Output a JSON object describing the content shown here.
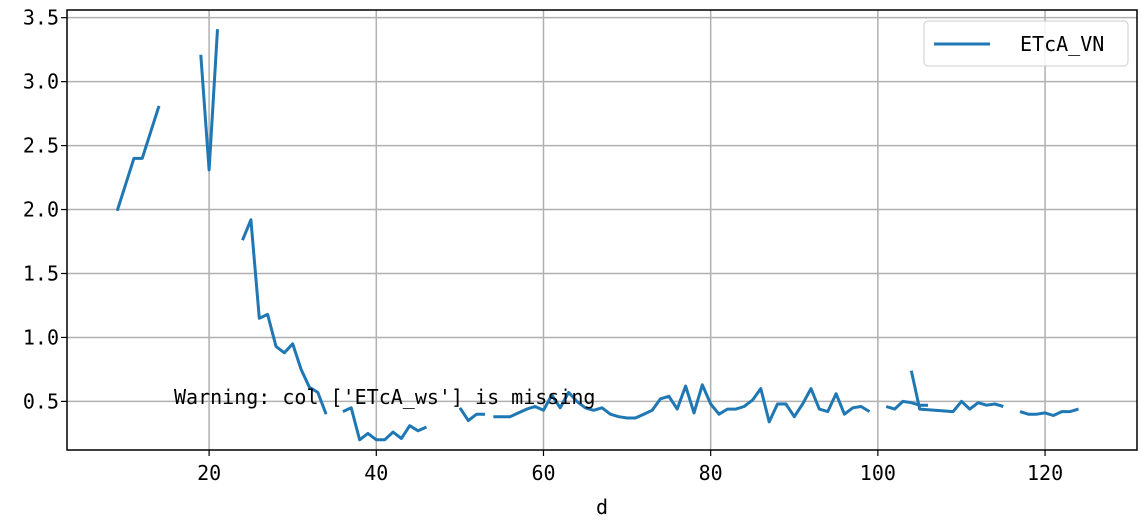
{
  "chart_data": {
    "type": "line",
    "title": "",
    "xlabel": "d",
    "ylabel": "",
    "xlim": [
      3,
      131
    ],
    "ylim": [
      0.12,
      3.56
    ],
    "x_ticks": [
      20,
      40,
      60,
      80,
      100,
      120
    ],
    "y_ticks": [
      0.5,
      1.0,
      1.5,
      2.0,
      2.5,
      3.0,
      3.5
    ],
    "x_tick_labels": [
      "20",
      "40",
      "60",
      "80",
      "100",
      "120"
    ],
    "y_tick_labels": [
      "0.5",
      "1.0",
      "1.5",
      "2.0",
      "2.5",
      "3.0",
      "3.5"
    ],
    "grid": true,
    "legend_position": "top-right",
    "annotation": "Warning: col ['ETcA_ws'] is missing",
    "series": [
      {
        "name": "ETcA_VN",
        "color": "#1f77b4",
        "segments": [
          [
            [
              9,
              1.99
            ],
            [
              11,
              2.4
            ],
            [
              12,
              2.4
            ],
            [
              14,
              2.81
            ]
          ],
          [
            [
              19,
              3.21
            ],
            [
              20,
              2.31
            ],
            [
              21,
              3.41
            ]
          ],
          [
            [
              24,
              1.76
            ],
            [
              25,
              1.92
            ],
            [
              26,
              1.15
            ],
            [
              27,
              1.18
            ],
            [
              28,
              0.93
            ],
            [
              29,
              0.88
            ],
            [
              30,
              0.95
            ],
            [
              31,
              0.75
            ],
            [
              32,
              0.61
            ],
            [
              33,
              0.57
            ],
            [
              34,
              0.4
            ]
          ],
          [
            [
              36,
              0.42
            ],
            [
              37,
              0.45
            ],
            [
              38,
              0.2
            ],
            [
              39,
              0.25
            ],
            [
              40,
              0.2
            ],
            [
              41,
              0.2
            ],
            [
              42,
              0.26
            ],
            [
              43,
              0.21
            ],
            [
              44,
              0.31
            ],
            [
              45,
              0.27
            ],
            [
              46,
              0.3
            ]
          ],
          [
            [
              50,
              0.45
            ],
            [
              51,
              0.35
            ],
            [
              52,
              0.4
            ],
            [
              53,
              0.4
            ]
          ],
          [
            [
              54,
              0.38
            ],
            [
              56,
              0.38
            ],
            [
              57,
              0.41
            ],
            [
              58,
              0.44
            ],
            [
              59,
              0.46
            ],
            [
              60,
              0.43
            ],
            [
              61,
              0.55
            ],
            [
              62,
              0.45
            ],
            [
              63,
              0.57
            ],
            [
              64,
              0.5
            ],
            [
              65,
              0.45
            ],
            [
              66,
              0.43
            ],
            [
              67,
              0.45
            ],
            [
              68,
              0.4
            ],
            [
              69,
              0.38
            ],
            [
              70,
              0.37
            ],
            [
              71,
              0.37
            ],
            [
              72,
              0.4
            ],
            [
              73,
              0.43
            ],
            [
              74,
              0.52
            ],
            [
              75,
              0.54
            ],
            [
              76,
              0.44
            ],
            [
              77,
              0.62
            ],
            [
              78,
              0.41
            ],
            [
              79,
              0.63
            ],
            [
              80,
              0.48
            ],
            [
              81,
              0.4
            ],
            [
              82,
              0.44
            ],
            [
              83,
              0.44
            ],
            [
              84,
              0.46
            ],
            [
              85,
              0.51
            ],
            [
              86,
              0.6
            ],
            [
              87,
              0.34
            ],
            [
              88,
              0.48
            ],
            [
              89,
              0.48
            ],
            [
              90,
              0.38
            ],
            [
              91,
              0.48
            ],
            [
              92,
              0.6
            ],
            [
              93,
              0.44
            ],
            [
              94,
              0.42
            ],
            [
              95,
              0.56
            ],
            [
              96,
              0.4
            ],
            [
              97,
              0.45
            ],
            [
              98,
              0.46
            ],
            [
              99,
              0.42
            ]
          ],
          [
            [
              101,
              0.46
            ],
            [
              102,
              0.44
            ],
            [
              103,
              0.5
            ],
            [
              104,
              0.49
            ],
            [
              105,
              0.47
            ],
            [
              106,
              0.47
            ]
          ],
          [
            [
              104,
              0.74
            ],
            [
              105,
              0.44
            ],
            [
              109,
              0.42
            ],
            [
              110,
              0.5
            ],
            [
              111,
              0.44
            ],
            [
              112,
              0.49
            ],
            [
              113,
              0.47
            ],
            [
              114,
              0.48
            ],
            [
              115,
              0.46
            ]
          ],
          [
            [
              117,
              0.42
            ],
            [
              118,
              0.4
            ],
            [
              119,
              0.4
            ],
            [
              120,
              0.41
            ],
            [
              121,
              0.39
            ],
            [
              122,
              0.42
            ],
            [
              123,
              0.42
            ],
            [
              124,
              0.44
            ]
          ]
        ]
      }
    ]
  }
}
